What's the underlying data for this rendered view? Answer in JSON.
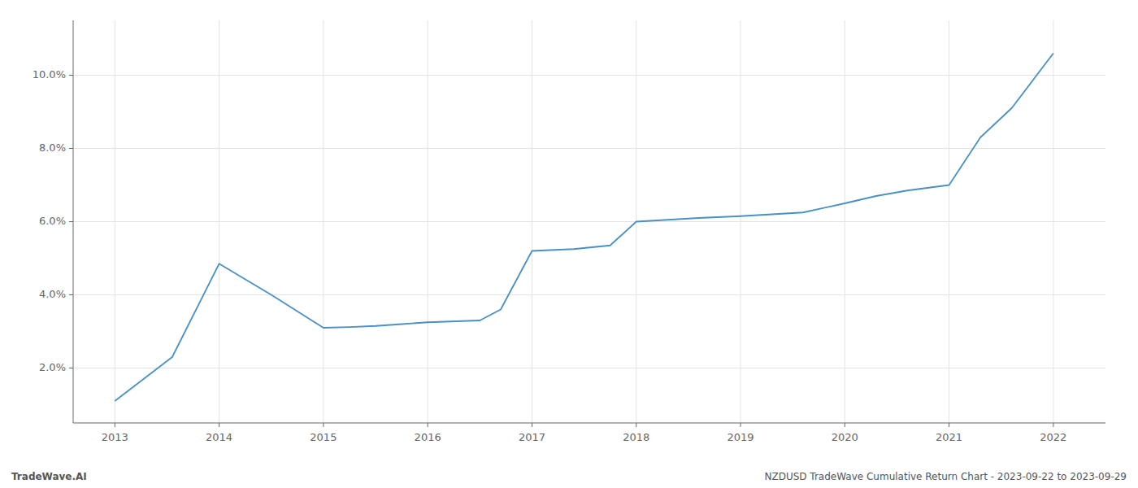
{
  "chart_data": {
    "type": "line",
    "x": [
      2013.0,
      2013.55,
      2014.0,
      2014.5,
      2015.0,
      2015.25,
      2015.5,
      2015.75,
      2016.0,
      2016.5,
      2016.7,
      2017.0,
      2017.4,
      2017.75,
      2018.0,
      2018.3,
      2018.6,
      2019.0,
      2019.3,
      2019.6,
      2020.0,
      2020.3,
      2020.6,
      2021.0,
      2021.3,
      2021.6,
      2022.0
    ],
    "values": [
      1.1,
      2.3,
      4.85,
      4.0,
      3.1,
      3.12,
      3.15,
      3.2,
      3.25,
      3.3,
      3.6,
      5.2,
      5.25,
      5.35,
      6.0,
      6.05,
      6.1,
      6.15,
      6.2,
      6.25,
      6.5,
      6.7,
      6.85,
      7.0,
      8.3,
      9.1,
      10.6
    ],
    "color": "#4a90c4",
    "xlim": [
      2012.6,
      2022.5
    ],
    "ylim": [
      0.5,
      11.5
    ],
    "xticks": [
      2013,
      2014,
      2015,
      2016,
      2017,
      2018,
      2019,
      2020,
      2021,
      2022
    ],
    "yticks": [
      {
        "value": 2.0,
        "label": "2.0%"
      },
      {
        "value": 4.0,
        "label": "4.0%"
      },
      {
        "value": 6.0,
        "label": "6.0%"
      },
      {
        "value": 8.0,
        "label": "8.0%"
      },
      {
        "value": 10.0,
        "label": "10.0%"
      }
    ],
    "grid": true,
    "annotations": [
      "TradeWave.AI",
      "NZDUSD TradeWave Cumulative Return Chart - 2023-09-22 to 2023-09-29"
    ]
  }
}
